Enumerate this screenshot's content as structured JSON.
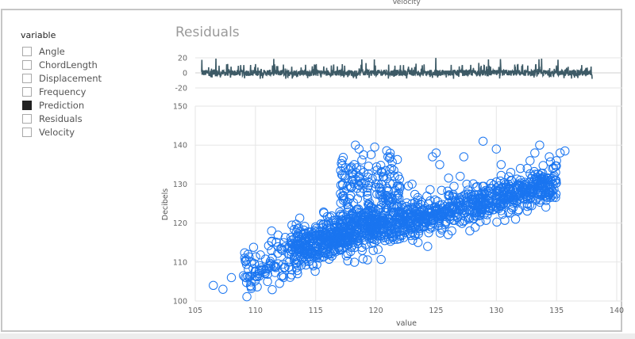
{
  "top_label": "Velocity",
  "legend": {
    "title": "variable",
    "items": [
      {
        "label": "Angle",
        "checked": false
      },
      {
        "label": "ChordLength",
        "checked": false
      },
      {
        "label": "Displacement",
        "checked": false
      },
      {
        "label": "Frequency",
        "checked": false
      },
      {
        "label": "Prediction",
        "checked": true
      },
      {
        "label": "Residuals",
        "checked": false
      },
      {
        "label": "Velocity",
        "checked": false
      }
    ]
  },
  "chart_title": "Residuals",
  "colors": {
    "points": "#1a75f0",
    "residual_line": "#3d5a66",
    "grid": "#e5e5e5"
  },
  "chart_data": [
    {
      "type": "line",
      "title": "Residuals",
      "ylim": [
        -20,
        20
      ],
      "yticks": [
        "20",
        "0",
        "-20"
      ],
      "approx_point_count": 1500,
      "y_range_observed": [
        -8,
        20
      ]
    },
    {
      "type": "scatter",
      "xlabel": "value",
      "ylabel": "Decibels",
      "xlim": [
        105,
        140
      ],
      "ylim": [
        100,
        150
      ],
      "xticks": [
        "105",
        "110",
        "115",
        "120",
        "125",
        "130",
        "135",
        "140"
      ],
      "yticks": [
        "100",
        "110",
        "120",
        "130",
        "140",
        "150"
      ],
      "approx_point_count": 1500,
      "series": [
        {
          "trend": "positive-linear",
          "points": [
            [
              106.5,
              104
            ],
            [
              107.3,
              103
            ],
            [
              108,
              106
            ],
            [
              109,
              106.5
            ],
            [
              110,
              107.5
            ],
            [
              110.5,
              108
            ],
            [
              111,
              105
            ],
            [
              111.5,
              109
            ],
            [
              112,
              104.5
            ],
            [
              112.3,
              106.5
            ],
            [
              112.8,
              110
            ],
            [
              113,
              108
            ],
            [
              113.5,
              107
            ],
            [
              114,
              110.5
            ],
            [
              114.3,
              112
            ],
            [
              114.8,
              109
            ],
            [
              115,
              114
            ],
            [
              115.3,
              111
            ],
            [
              115.7,
              116
            ],
            [
              116,
              112
            ],
            [
              116.3,
              115
            ],
            [
              116.7,
              117.5
            ],
            [
              117,
              113
            ],
            [
              117.2,
              119
            ],
            [
              117.5,
              121
            ],
            [
              117.7,
              124
            ],
            [
              117.9,
              127
            ],
            [
              118,
              131
            ],
            [
              118.2,
              135
            ],
            [
              118.3,
              140
            ],
            [
              118.6,
              139
            ],
            [
              119,
              133
            ],
            [
              119.3,
              129
            ],
            [
              119.6,
              124
            ],
            [
              119.9,
              139.5
            ],
            [
              120.2,
              130
            ],
            [
              120.5,
              133
            ],
            [
              120.8,
              127
            ],
            [
              121,
              137
            ],
            [
              121.3,
              134
            ],
            [
              121.6,
              127
            ],
            [
              122,
              120
            ],
            [
              122.3,
              118
            ],
            [
              122.7,
              129.5
            ],
            [
              123,
              130
            ],
            [
              123.5,
              115
            ],
            [
              124,
              119
            ],
            [
              124.3,
              114
            ],
            [
              124.7,
              137
            ],
            [
              125,
              138
            ],
            [
              125.3,
              135
            ],
            [
              125.8,
              120
            ],
            [
              126,
              117
            ],
            [
              126.4,
              124
            ],
            [
              126.8,
              121.5
            ],
            [
              127,
              132
            ],
            [
              127.3,
              137
            ],
            [
              127.8,
              118
            ],
            [
              128,
              126
            ],
            [
              128.5,
              123
            ],
            [
              128.9,
              141
            ],
            [
              129.2,
              128
            ],
            [
              129.6,
              124.5
            ],
            [
              130,
              139
            ],
            [
              130.4,
              135
            ],
            [
              130.8,
              126
            ],
            [
              131.2,
              133
            ],
            [
              131.6,
              121
            ],
            [
              132,
              134
            ],
            [
              132.4,
              128
            ],
            [
              132.8,
              136
            ],
            [
              133.2,
              138
            ],
            [
              133.6,
              140
            ],
            [
              134,
              131
            ],
            [
              134.4,
              137
            ],
            [
              135,
              136
            ],
            [
              135.3,
              138
            ],
            [
              135.7,
              138.5
            ],
            [
              118.5,
              116
            ],
            [
              119.2,
              118
            ],
            [
              120,
              120
            ],
            [
              121,
              121
            ],
            [
              122,
              122
            ],
            [
              123,
              122
            ],
            [
              124,
              123
            ],
            [
              125,
              124
            ],
            [
              126,
              125
            ],
            [
              127,
              126
            ],
            [
              128,
              127
            ],
            [
              129,
              128
            ],
            [
              130,
              129
            ],
            [
              131,
              130
            ],
            [
              132,
              131
            ],
            [
              133,
              132
            ]
          ]
        }
      ]
    }
  ]
}
